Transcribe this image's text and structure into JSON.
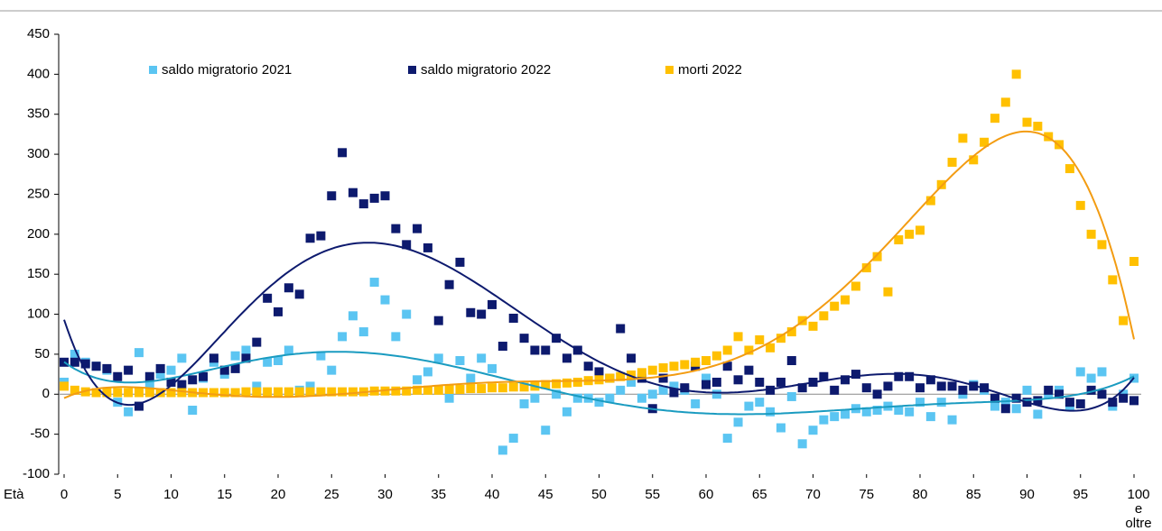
{
  "chart_data": {
    "type": "scatter",
    "xlabel": "Età",
    "x": [
      0,
      1,
      2,
      3,
      4,
      5,
      6,
      7,
      8,
      9,
      10,
      11,
      12,
      13,
      14,
      15,
      16,
      17,
      18,
      19,
      20,
      21,
      22,
      23,
      24,
      25,
      26,
      27,
      28,
      29,
      30,
      31,
      32,
      33,
      34,
      35,
      36,
      37,
      38,
      39,
      40,
      41,
      42,
      43,
      44,
      45,
      46,
      47,
      48,
      49,
      50,
      51,
      52,
      53,
      54,
      55,
      56,
      57,
      58,
      59,
      60,
      61,
      62,
      63,
      64,
      65,
      66,
      67,
      68,
      69,
      70,
      71,
      72,
      73,
      74,
      75,
      76,
      77,
      78,
      79,
      80,
      81,
      82,
      83,
      84,
      85,
      86,
      87,
      88,
      89,
      90,
      91,
      92,
      93,
      94,
      95,
      96,
      97,
      98,
      99,
      100
    ],
    "series": [
      {
        "name": "saldo migratorio 2021",
        "color": "#5bc5f2",
        "trendline": {
          "degree": 6,
          "color": "#1a9bc0"
        },
        "values": [
          15,
          50,
          40,
          35,
          30,
          -10,
          -22,
          52,
          10,
          25,
          30,
          45,
          -20,
          20,
          40,
          25,
          48,
          55,
          10,
          40,
          42,
          55,
          5,
          10,
          48,
          30,
          72,
          98,
          78,
          140,
          118,
          72,
          100,
          18,
          28,
          45,
          -5,
          42,
          20,
          45,
          32,
          -70,
          -55,
          -12,
          -5,
          -45,
          0,
          -22,
          -5,
          -5,
          -10,
          -5,
          5,
          15,
          -5,
          0,
          5,
          10,
          5,
          -12,
          20,
          0,
          -55,
          -35,
          -15,
          -10,
          -22,
          -42,
          -3,
          -62,
          -45,
          -32,
          -28,
          -25,
          -18,
          -22,
          -20,
          -15,
          -20,
          -22,
          -10,
          -28,
          -10,
          -32,
          0,
          12,
          5,
          -15,
          -10,
          -18,
          5,
          -25,
          0,
          5,
          -15,
          28,
          20,
          28,
          -15,
          0,
          20
        ]
      },
      {
        "name": "saldo migratorio 2022",
        "color": "#0d1a6e",
        "trendline": {
          "degree": 6,
          "color": "#0d1a6e"
        },
        "values": [
          40,
          40,
          38,
          35,
          32,
          22,
          30,
          -15,
          22,
          32,
          15,
          12,
          18,
          22,
          45,
          30,
          32,
          45,
          65,
          120,
          103,
          133,
          125,
          195,
          198,
          248,
          302,
          252,
          238,
          245,
          248,
          207,
          187,
          207,
          183,
          92,
          137,
          165,
          102,
          100,
          112,
          60,
          95,
          70,
          55,
          55,
          70,
          45,
          55,
          35,
          28,
          20,
          82,
          45,
          20,
          -18,
          20,
          2,
          8,
          35,
          12,
          15,
          35,
          18,
          30,
          15,
          5,
          15,
          42,
          8,
          15,
          22,
          5,
          18,
          25,
          8,
          0,
          10,
          22,
          22,
          8,
          18,
          10,
          10,
          5,
          10,
          8,
          -5,
          -18,
          -5,
          -10,
          -8,
          5,
          0,
          -10,
          -12,
          5,
          0,
          -10,
          -5,
          -8
        ]
      },
      {
        "name": "morti 2022",
        "color": "#ffc000",
        "trendline": {
          "degree": 6,
          "color": "#f39c12"
        },
        "values": [
          10,
          5,
          3,
          2,
          2,
          2,
          2,
          2,
          2,
          2,
          2,
          2,
          2,
          2,
          2,
          2,
          2,
          3,
          3,
          3,
          3,
          3,
          3,
          3,
          3,
          3,
          3,
          3,
          3,
          4,
          4,
          4,
          4,
          5,
          5,
          5,
          6,
          6,
          7,
          7,
          8,
          8,
          9,
          9,
          10,
          12,
          13,
          14,
          15,
          17,
          18,
          20,
          22,
          24,
          27,
          30,
          33,
          35,
          37,
          40,
          42,
          48,
          55,
          72,
          55,
          68,
          58,
          70,
          78,
          92,
          85,
          98,
          110,
          118,
          135,
          158,
          172,
          128,
          193,
          200,
          205,
          242,
          262,
          290,
          320,
          293,
          315,
          345,
          365,
          400,
          340,
          335,
          322,
          312,
          282,
          236,
          200,
          187,
          143,
          92,
          166
        ]
      }
    ],
    "xlim": [
      0,
      100
    ],
    "xticks": [
      0,
      5,
      10,
      15,
      20,
      25,
      30,
      35,
      40,
      45,
      50,
      55,
      60,
      65,
      70,
      75,
      80,
      85,
      90,
      95,
      {
        "value": 100,
        "label": "100 e oltre"
      }
    ],
    "ylim": [
      -100,
      450
    ],
    "yticks": [
      -100,
      -50,
      0,
      50,
      100,
      150,
      200,
      250,
      300,
      350,
      400,
      450
    ]
  }
}
